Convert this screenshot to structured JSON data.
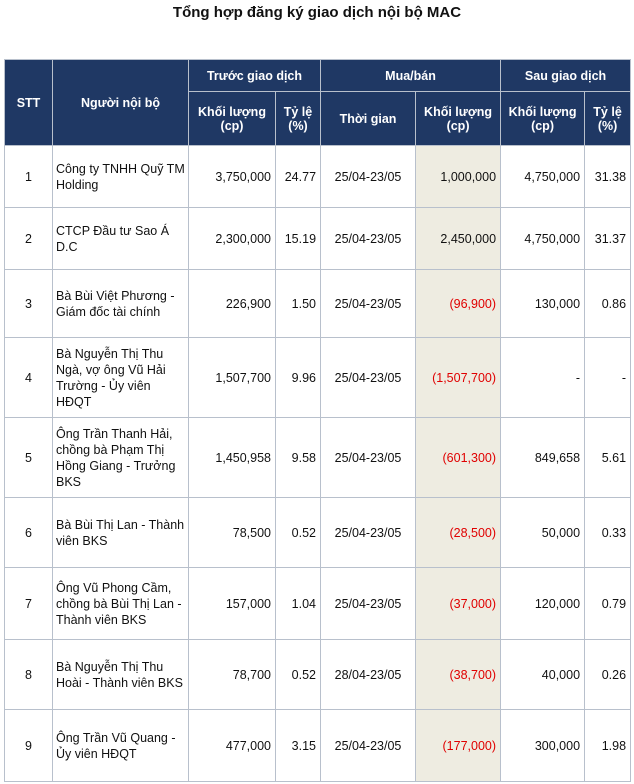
{
  "title": "Tổng hợp đăng ký giao dịch nội bộ MAC",
  "headers": {
    "stt": "STT",
    "insider": "Người nội bộ",
    "before": "Trước giao dịch",
    "buysell": "Mua/bán",
    "after": "Sau giao dịch",
    "volume_line1": "Khối lượng",
    "volume_line2": "(cp)",
    "ratio_line1": "Tỷ lệ",
    "ratio_line2": "(%)",
    "time": "Thời gian"
  },
  "rows": [
    {
      "stt": "1",
      "name": "Công ty TNHH Quỹ TM Holding",
      "before_vol": "3,750,000",
      "before_pct": "24.77",
      "time": "25/04-23/05",
      "trade_vol": "1,000,000",
      "after_vol": "4,750,000",
      "after_pct": "31.38"
    },
    {
      "stt": "2",
      "name": "CTCP Đầu tư Sao Á D.C",
      "before_vol": "2,300,000",
      "before_pct": "15.19",
      "time": "25/04-23/05",
      "trade_vol": "2,450,000",
      "after_vol": "4,750,000",
      "after_pct": "31.37"
    },
    {
      "stt": "3",
      "name": "Bà Bùi Việt Phương - Giám đốc tài chính",
      "before_vol": "226,900",
      "before_pct": "1.50",
      "time": "25/04-23/05",
      "trade_vol": "(96,900)",
      "after_vol": "130,000",
      "after_pct": "0.86"
    },
    {
      "stt": "4",
      "name": "Bà Nguyễn Thị Thu Ngà, vợ ông Vũ Hải Trường - Ủy viên HĐQT",
      "before_vol": "1,507,700",
      "before_pct": "9.96",
      "time": "25/04-23/05",
      "trade_vol": "(1,507,700)",
      "after_vol": "-",
      "after_pct": "-"
    },
    {
      "stt": "5",
      "name": "Ông Trần Thanh Hải, chồng bà Phạm Thị Hồng Giang - Trưởng BKS",
      "before_vol": "1,450,958",
      "before_pct": "9.58",
      "time": "25/04-23/05",
      "trade_vol": "(601,300)",
      "after_vol": "849,658",
      "after_pct": "5.61"
    },
    {
      "stt": "6",
      "name": "Bà Bùi Thị Lan - Thành viên BKS",
      "before_vol": "78,500",
      "before_pct": "0.52",
      "time": "25/04-23/05",
      "trade_vol": "(28,500)",
      "after_vol": "50,000",
      "after_pct": "0.33"
    },
    {
      "stt": "7",
      "name": "Ông Vũ Phong Cầm, chồng bà Bùi Thị Lan - Thành viên BKS",
      "before_vol": "157,000",
      "before_pct": "1.04",
      "time": "25/04-23/05",
      "trade_vol": "(37,000)",
      "after_vol": "120,000",
      "after_pct": "0.79"
    },
    {
      "stt": "8",
      "name": "Bà Nguyễn Thị Thu Hoài - Thành viên BKS",
      "before_vol": "78,700",
      "before_pct": "0.52",
      "time": "28/04-23/05",
      "trade_vol": "(38,700)",
      "after_vol": "40,000",
      "after_pct": "0.26"
    },
    {
      "stt": "9",
      "name": "Ông Trần Vũ Quang - Ủy viên HĐQT",
      "before_vol": "477,000",
      "before_pct": "3.15",
      "time": "25/04-23/05",
      "trade_vol": "(177,000)",
      "after_vol": "300,000",
      "after_pct": "1.98"
    }
  ],
  "colors": {
    "header_bg": "#1f3864",
    "header_text": "#ffffff",
    "highlight_col": "#eeece1",
    "negative": "#e00000"
  }
}
